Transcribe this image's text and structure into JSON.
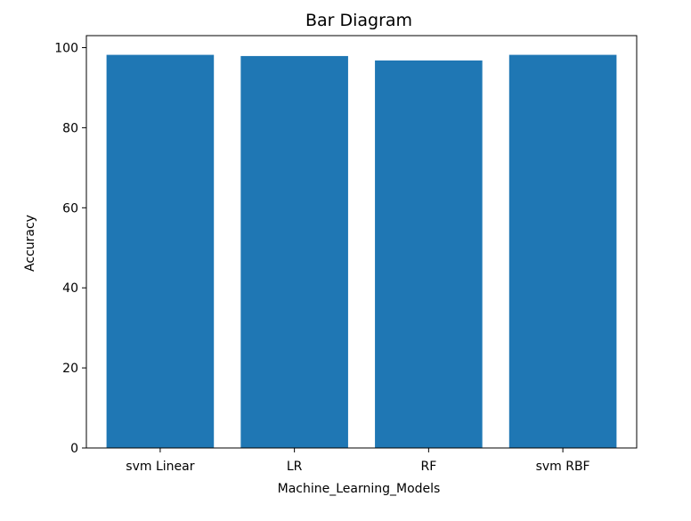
{
  "chart_data": {
    "type": "bar",
    "title": "Bar Diagram",
    "xlabel": "Machine_Learning_Models",
    "ylabel": "Accuracy",
    "categories": [
      "svm Linear",
      "LR",
      "RF",
      "svm RBF"
    ],
    "values": [
      98.2,
      97.9,
      96.8,
      98.2
    ],
    "ylim": [
      0,
      103
    ],
    "yticks": [
      0,
      20,
      40,
      60,
      80,
      100
    ],
    "bar_color": "#1f77b4",
    "grid": false,
    "legend": "none"
  }
}
